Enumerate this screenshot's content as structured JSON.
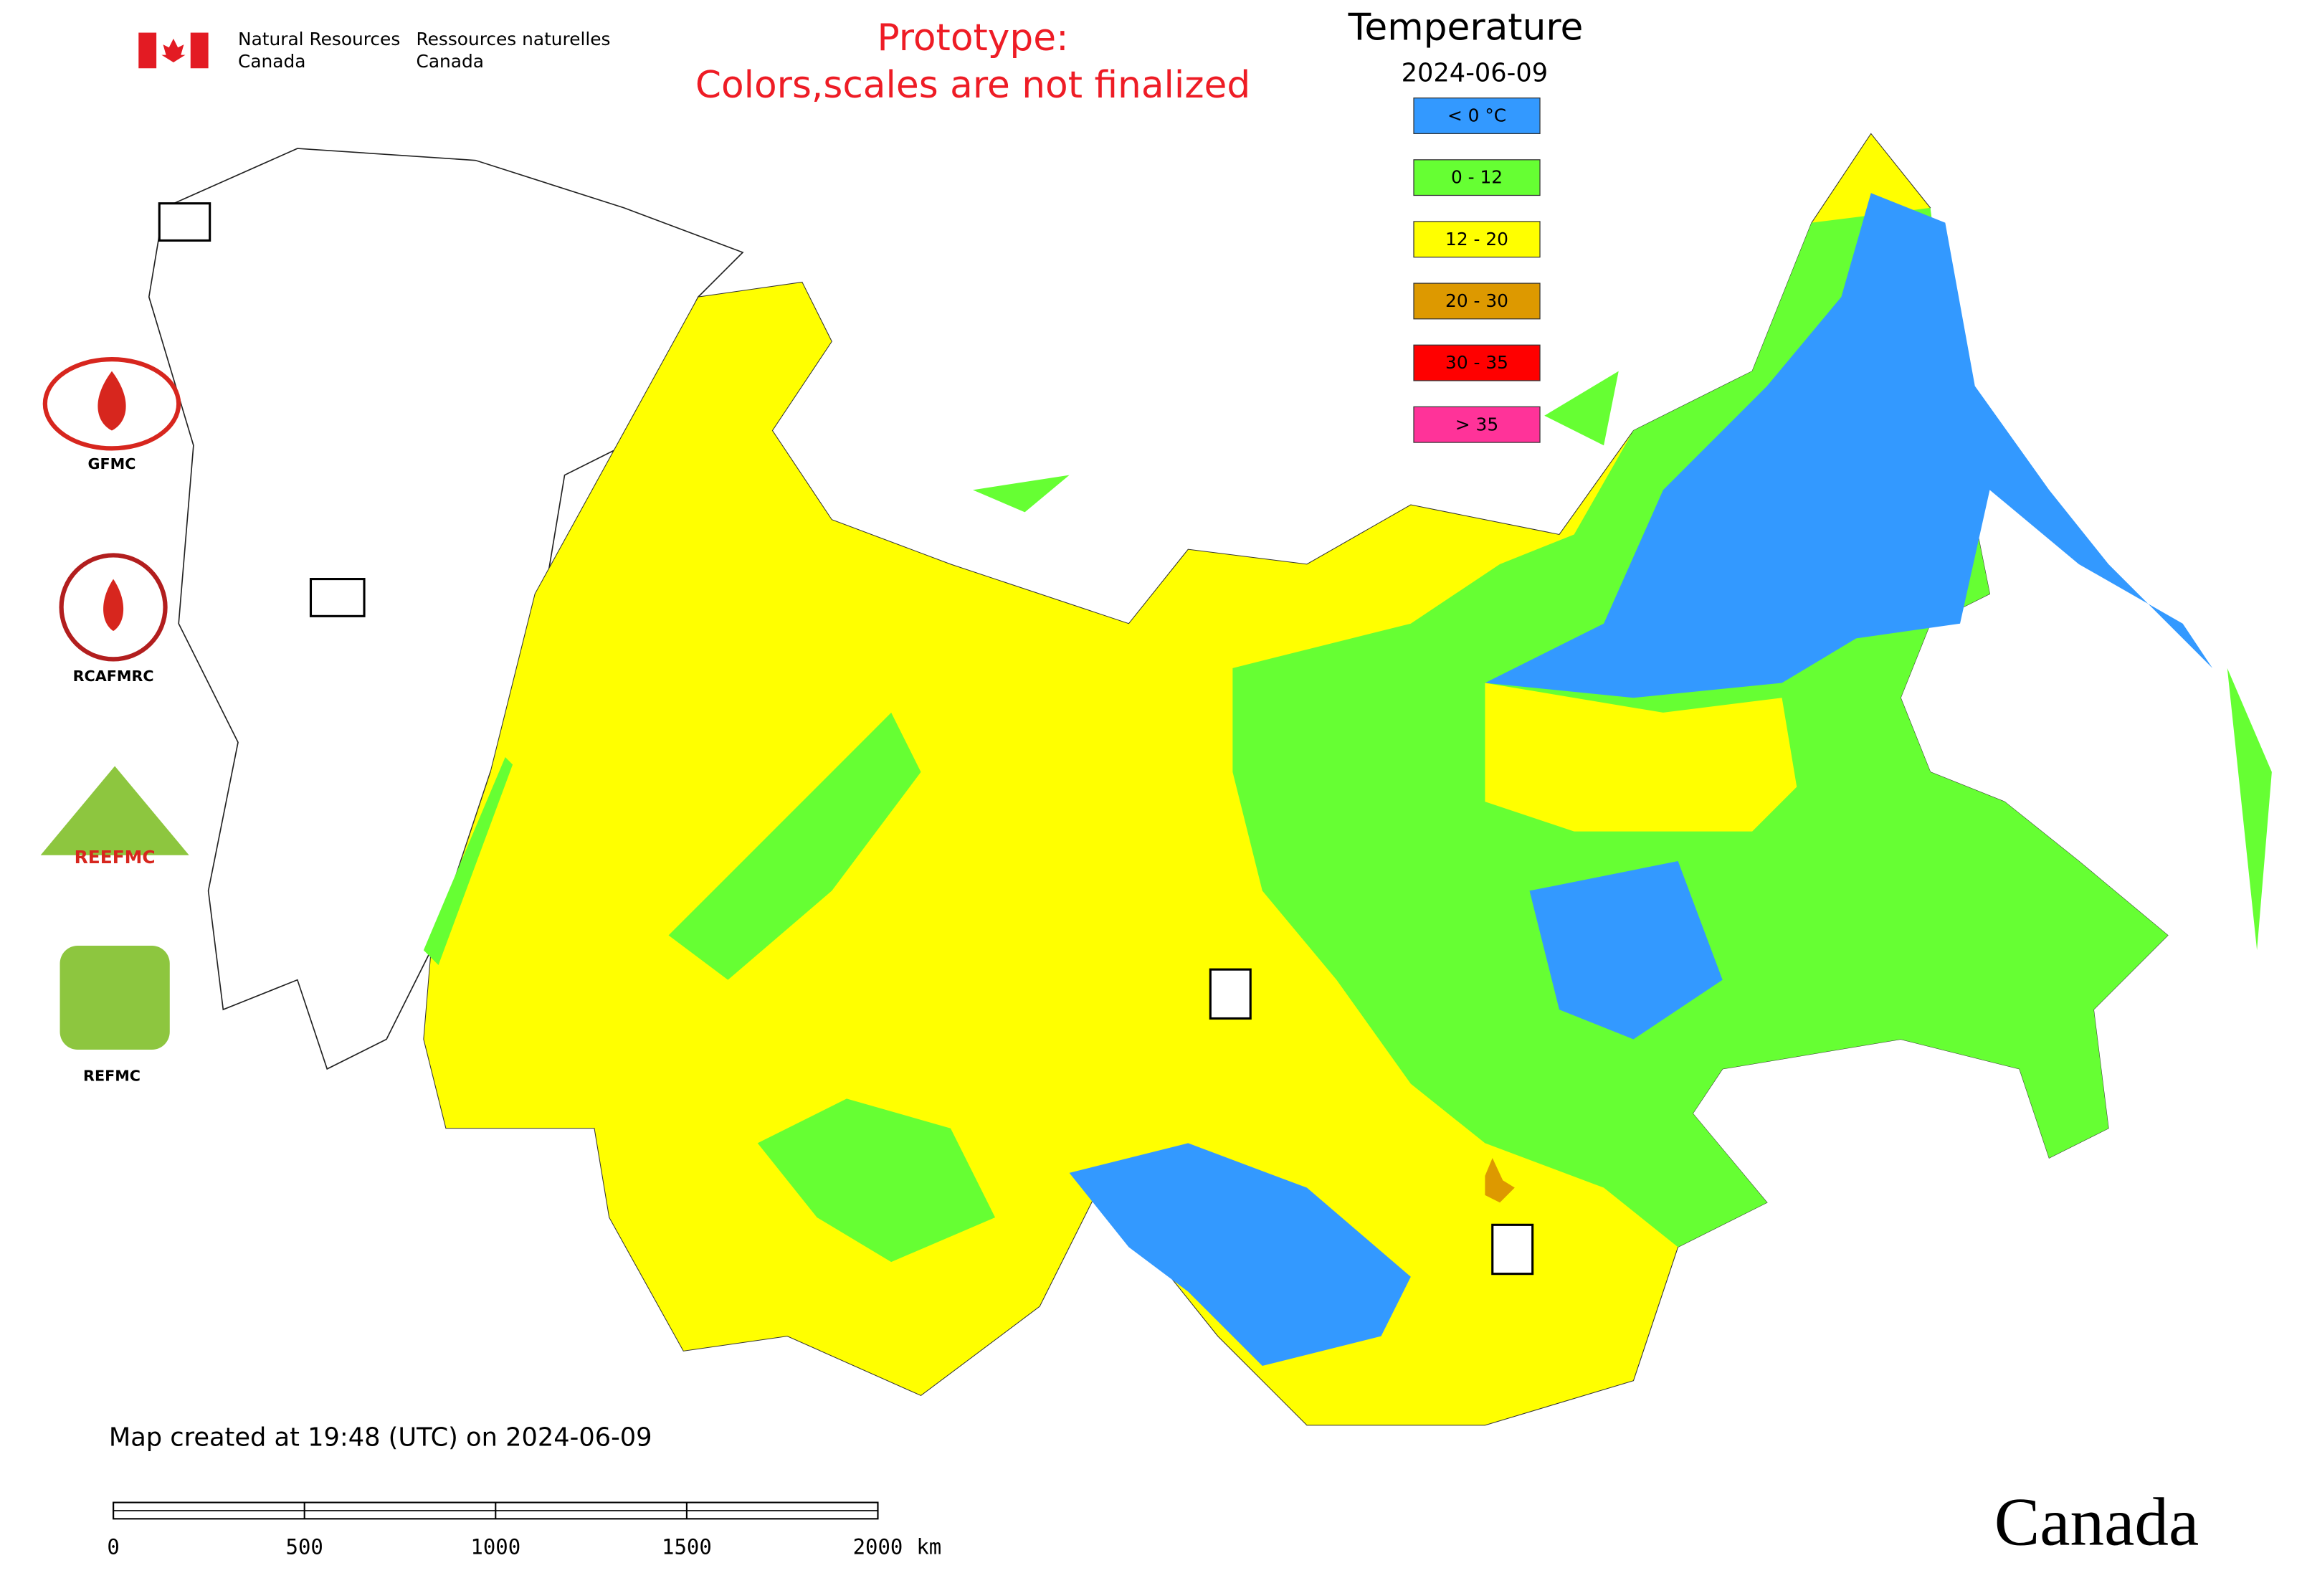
{
  "header": {
    "agency_en": [
      "Natural Resources",
      "Canada"
    ],
    "agency_fr": [
      "Ressources naturelles",
      "Canada"
    ],
    "notice": [
      "Prototype:",
      "Colors,scales are not finalized"
    ]
  },
  "map": {
    "title": "Temperature",
    "date": "2024-06-09",
    "legend": [
      {
        "label": "< 0 °C",
        "color": "#3399ff"
      },
      {
        "label": "0 - 12",
        "color": "#66ff33"
      },
      {
        "label": "12 - 20",
        "color": "#ffff00"
      },
      {
        "label": "20 - 30",
        "color": "#dd9900"
      },
      {
        "label": "30 - 35",
        "color": "#ff0000"
      },
      {
        "label": "> 35",
        "color": "#ff3399"
      }
    ],
    "footnote": "Map created at 19:48 (UTC) on 2024-06-09",
    "scale_bar": {
      "ticks": [
        0,
        500,
        1000,
        1500,
        2000
      ],
      "unit": "km"
    }
  },
  "logos": [
    "GFMC",
    "RCAFMRC",
    "REEFMC",
    "REFMC"
  ],
  "wordmark": "Canada"
}
